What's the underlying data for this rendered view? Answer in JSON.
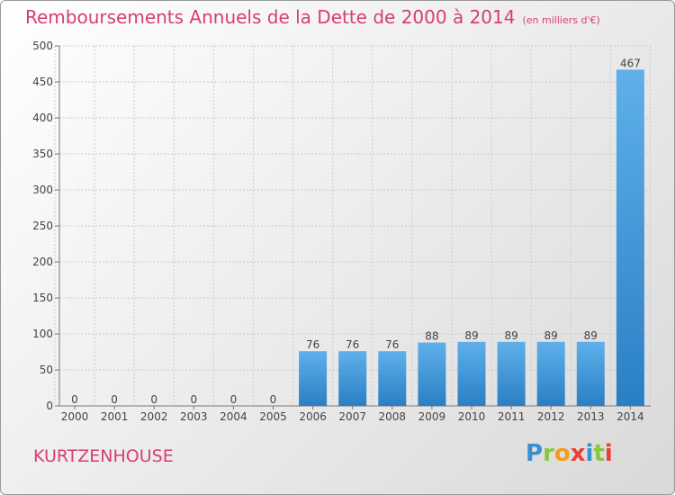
{
  "title": "Remboursements Annuels de la Dette de 2000 à 2014",
  "subtitle": "(en milliers d'€)",
  "town": "KURTZENHOUSE",
  "logo": {
    "letters": [
      "P",
      "r",
      "o",
      "x",
      "i",
      "t",
      "i"
    ],
    "colors": [
      "#3a8fd1",
      "#8cc63f",
      "#f39c1f",
      "#e8403a",
      "#3a8fd1",
      "#8cc63f",
      "#e8403a"
    ]
  },
  "colors": {
    "text_accent": "#d63d76",
    "bar_top": "#5fb0ea",
    "bar_bottom": "#2a7fc4"
  },
  "chart_data": {
    "type": "bar",
    "categories": [
      "2000",
      "2001",
      "2002",
      "2003",
      "2004",
      "2005",
      "2006",
      "2007",
      "2008",
      "2009",
      "2010",
      "2011",
      "2012",
      "2013",
      "2014"
    ],
    "values": [
      0,
      0,
      0,
      0,
      0,
      0,
      76,
      76,
      76,
      88,
      89,
      89,
      89,
      89,
      467
    ],
    "ylim": [
      0,
      500
    ],
    "yticks": [
      0,
      50,
      100,
      150,
      200,
      250,
      300,
      350,
      400,
      450,
      500
    ],
    "grid": true,
    "legend": "none"
  }
}
